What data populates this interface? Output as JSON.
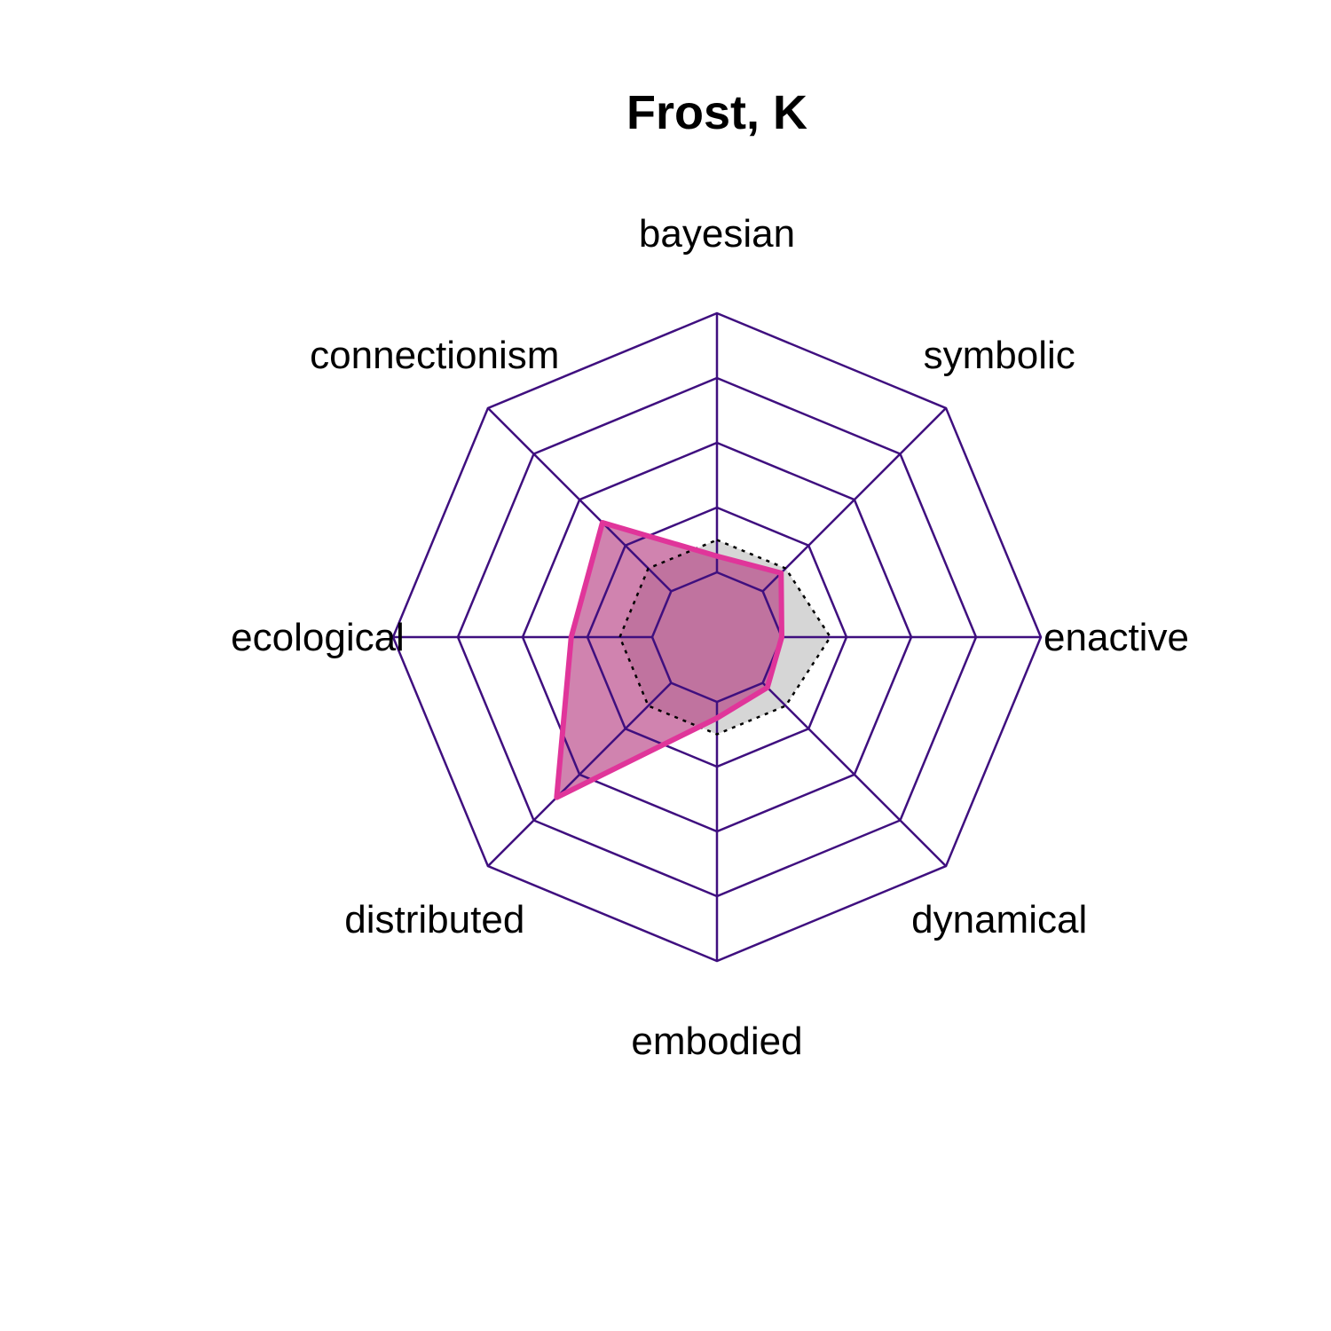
{
  "chart_data": {
    "type": "radar",
    "title": "Frost, K",
    "axes": [
      "bayesian",
      "symbolic",
      "enactive",
      "dynamical",
      "embodied",
      "distributed",
      "ecological",
      "connectionism"
    ],
    "rlim": [
      0,
      1
    ],
    "grid_levels": [
      0.2,
      0.4,
      0.6,
      0.8,
      1.0
    ],
    "series": [
      {
        "values": [
          0.25,
          0.28,
          0.2,
          0.22,
          0.25,
          0.7,
          0.45,
          0.5
        ],
        "line_color": "#e0359a",
        "fill_color": "#b0307a",
        "fill_opacity": 0.6
      },
      {
        "values": [
          0.3,
          0.3,
          0.35,
          0.3,
          0.3,
          0.3,
          0.3,
          0.3
        ],
        "line_color": "#000000",
        "line_style": "dotted",
        "fill_color": "#cccccc",
        "fill_opacity": 0.8
      }
    ],
    "grid_color": "#3f0f7f"
  }
}
